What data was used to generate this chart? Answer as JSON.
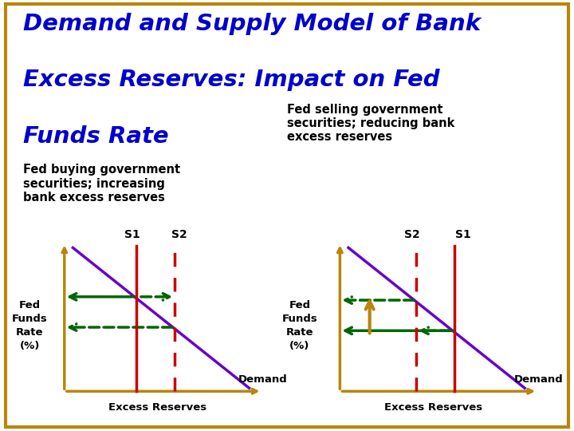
{
  "title_line1": "Demand and Supply Model of Bank",
  "title_line2": "Excess Reserves: Impact on Fed",
  "title_line3": "Funds Rate",
  "title_color": "#0000CC",
  "background_color": "#FFFFFF",
  "border_color": "#B8860B",
  "left_subtitle": "Fed buying government\nsecurities; increasing\nbank excess reserves",
  "right_subtitle": "Fed selling government\nsecurities; reducing bank\nexcess reserves",
  "left_xlabel": "Excess Reserves",
  "right_xlabel": "Excess Reserves",
  "left_ylabel": "Fed\nFunds\nRate\n(%)",
  "right_ylabel": "Fed\nFunds\nRate\n(%)",
  "demand_label": "Demand",
  "demand_color": "#6600CC",
  "s1_color": "#CC0000",
  "s2_color": "#CC0000",
  "arrow_color": "#006600",
  "axis_color": "#B8860B",
  "up_arrow_color": "#B8860B"
}
